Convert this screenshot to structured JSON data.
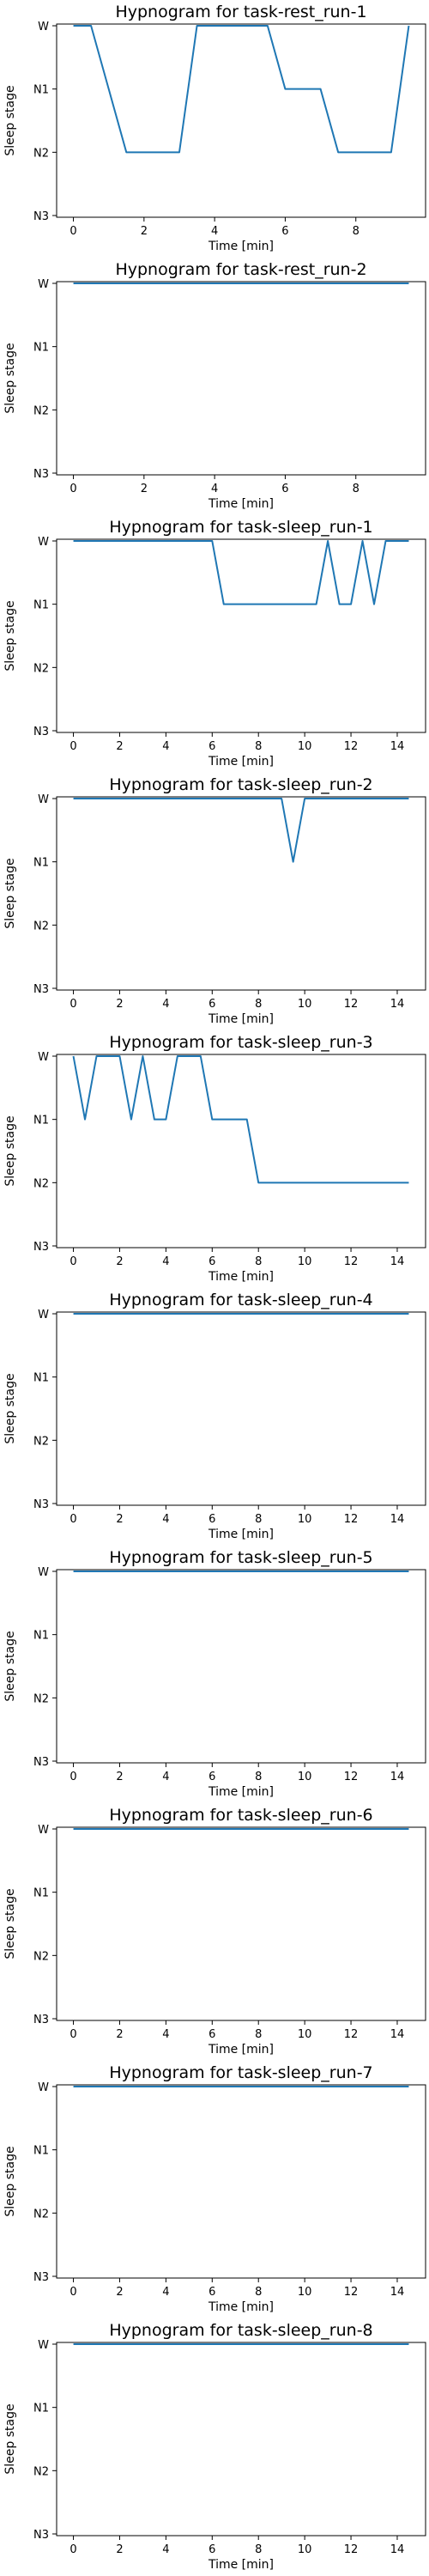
{
  "style": {
    "line_color": "#1f77b4",
    "axis_color": "#000000",
    "background": "#ffffff"
  },
  "chart_data": [
    {
      "type": "line",
      "title": "Hypnogram for task-rest_run-1",
      "xlabel": "Time [min]",
      "ylabel": "Sleep stage",
      "xlim": [
        -0.475,
        9.975
      ],
      "xticks": [
        0,
        2,
        4,
        6,
        8
      ],
      "y_categories": [
        "W",
        "N1",
        "N2",
        "N3"
      ],
      "grid": false,
      "series": [
        {
          "x": [
            0,
            0.5,
            1.5,
            2.5,
            3,
            3.5,
            4.5,
            5.5,
            6,
            7,
            7.5,
            8.5,
            9,
            9.5
          ],
          "stages": [
            "W",
            "W",
            "N2",
            "N2",
            "N2",
            "W",
            "W",
            "W",
            "N1",
            "N1",
            "N2",
            "N2",
            "N2",
            "W"
          ]
        }
      ]
    },
    {
      "type": "line",
      "title": "Hypnogram for task-rest_run-2",
      "xlabel": "Time [min]",
      "ylabel": "Sleep stage",
      "xlim": [
        -0.475,
        9.975
      ],
      "xticks": [
        0,
        2,
        4,
        6,
        8
      ],
      "y_categories": [
        "W",
        "N1",
        "N2",
        "N3"
      ],
      "grid": false,
      "series": [
        {
          "x": [
            0,
            9.5
          ],
          "stages": [
            "W",
            "W"
          ]
        }
      ]
    },
    {
      "type": "line",
      "title": "Hypnogram for task-sleep_run-1",
      "xlabel": "Time [min]",
      "ylabel": "Sleep stage",
      "xlim": [
        -0.725,
        15.225
      ],
      "xticks": [
        0,
        2,
        4,
        6,
        8,
        10,
        12,
        14
      ],
      "y_categories": [
        "W",
        "N1",
        "N2",
        "N3"
      ],
      "grid": false,
      "series": [
        {
          "x": [
            0,
            6,
            6.5,
            10.5,
            11,
            11.5,
            12,
            12.5,
            13,
            13.5,
            14.5
          ],
          "stages": [
            "W",
            "W",
            "N1",
            "N1",
            "W",
            "N1",
            "N1",
            "W",
            "N1",
            "W",
            "W"
          ]
        }
      ]
    },
    {
      "type": "line",
      "title": "Hypnogram for task-sleep_run-2",
      "xlabel": "Time [min]",
      "ylabel": "Sleep stage",
      "xlim": [
        -0.725,
        15.225
      ],
      "xticks": [
        0,
        2,
        4,
        6,
        8,
        10,
        12,
        14
      ],
      "y_categories": [
        "W",
        "N1",
        "N2",
        "N3"
      ],
      "grid": false,
      "series": [
        {
          "x": [
            0,
            9,
            9.5,
            10,
            14.5
          ],
          "stages": [
            "W",
            "W",
            "N1",
            "W",
            "W"
          ]
        }
      ]
    },
    {
      "type": "line",
      "title": "Hypnogram for task-sleep_run-3",
      "xlabel": "Time [min]",
      "ylabel": "Sleep stage",
      "xlim": [
        -0.725,
        15.225
      ],
      "xticks": [
        0,
        2,
        4,
        6,
        8,
        10,
        12,
        14
      ],
      "y_categories": [
        "W",
        "N1",
        "N2",
        "N3"
      ],
      "grid": false,
      "series": [
        {
          "x": [
            0,
            0.5,
            1,
            2,
            2.5,
            3,
            3.5,
            4,
            4.5,
            5.5,
            6,
            7.5,
            8,
            14.5
          ],
          "stages": [
            "W",
            "N1",
            "W",
            "W",
            "N1",
            "W",
            "N1",
            "N1",
            "W",
            "W",
            "N1",
            "N1",
            "N2",
            "N2"
          ]
        }
      ]
    },
    {
      "type": "line",
      "title": "Hypnogram for task-sleep_run-4",
      "xlabel": "Time [min]",
      "ylabel": "Sleep stage",
      "xlim": [
        -0.725,
        15.225
      ],
      "xticks": [
        0,
        2,
        4,
        6,
        8,
        10,
        12,
        14
      ],
      "y_categories": [
        "W",
        "N1",
        "N2",
        "N3"
      ],
      "grid": false,
      "series": [
        {
          "x": [
            0,
            14.5
          ],
          "stages": [
            "W",
            "W"
          ]
        }
      ]
    },
    {
      "type": "line",
      "title": "Hypnogram for task-sleep_run-5",
      "xlabel": "Time [min]",
      "ylabel": "Sleep stage",
      "xlim": [
        -0.725,
        15.225
      ],
      "xticks": [
        0,
        2,
        4,
        6,
        8,
        10,
        12,
        14
      ],
      "y_categories": [
        "W",
        "N1",
        "N2",
        "N3"
      ],
      "grid": false,
      "series": [
        {
          "x": [
            0,
            14.5
          ],
          "stages": [
            "W",
            "W"
          ]
        }
      ]
    },
    {
      "type": "line",
      "title": "Hypnogram for task-sleep_run-6",
      "xlabel": "Time [min]",
      "ylabel": "Sleep stage",
      "xlim": [
        -0.725,
        15.225
      ],
      "xticks": [
        0,
        2,
        4,
        6,
        8,
        10,
        12,
        14
      ],
      "y_categories": [
        "W",
        "N1",
        "N2",
        "N3"
      ],
      "grid": false,
      "series": [
        {
          "x": [
            0,
            14.5
          ],
          "stages": [
            "W",
            "W"
          ]
        }
      ]
    },
    {
      "type": "line",
      "title": "Hypnogram for task-sleep_run-7",
      "xlabel": "Time [min]",
      "ylabel": "Sleep stage",
      "xlim": [
        -0.725,
        15.225
      ],
      "xticks": [
        0,
        2,
        4,
        6,
        8,
        10,
        12,
        14
      ],
      "y_categories": [
        "W",
        "N1",
        "N2",
        "N3"
      ],
      "grid": false,
      "series": [
        {
          "x": [
            0,
            14.5
          ],
          "stages": [
            "W",
            "W"
          ]
        }
      ]
    },
    {
      "type": "line",
      "title": "Hypnogram for task-sleep_run-8",
      "xlabel": "Time [min]",
      "ylabel": "Sleep stage",
      "xlim": [
        -0.725,
        15.225
      ],
      "xticks": [
        0,
        2,
        4,
        6,
        8,
        10,
        12,
        14
      ],
      "y_categories": [
        "W",
        "N1",
        "N2",
        "N3"
      ],
      "grid": false,
      "series": [
        {
          "x": [
            0,
            14.5
          ],
          "stages": [
            "W",
            "W"
          ]
        }
      ]
    }
  ]
}
